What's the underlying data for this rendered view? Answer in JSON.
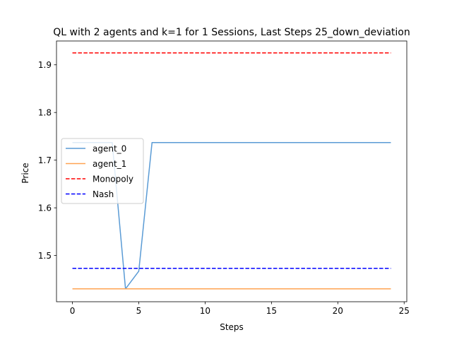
{
  "chart_data": {
    "type": "line",
    "title": "QL with 2 agents and k=1 for 1 Sessions, Last Steps 25_down_deviation",
    "xlabel": "Steps",
    "ylabel": "Price",
    "xlim": [
      -1.2,
      25.2
    ],
    "ylim": [
      1.403,
      1.95
    ],
    "xticks": [
      0,
      5,
      10,
      15,
      20,
      25
    ],
    "xtick_labels": [
      "0",
      "5",
      "10",
      "15",
      "20",
      "25"
    ],
    "yticks": [
      1.5,
      1.6,
      1.7,
      1.8,
      1.9
    ],
    "ytick_labels": [
      "1.5",
      "1.6",
      "1.7",
      "1.8",
      "1.9"
    ],
    "grid": false,
    "legend_position": "center-left",
    "series": [
      {
        "name": "agent_0",
        "color": "#5a9bd5",
        "style": "solid",
        "x": [
          0,
          1,
          2,
          3,
          4,
          5,
          6,
          7,
          8,
          9,
          10,
          11,
          12,
          13,
          14,
          15,
          16,
          17,
          18,
          19,
          20,
          21,
          22,
          23,
          24
        ],
        "values": [
          1.737,
          1.737,
          1.737,
          1.737,
          1.43,
          1.467,
          1.737,
          1.737,
          1.737,
          1.737,
          1.737,
          1.737,
          1.737,
          1.737,
          1.737,
          1.737,
          1.737,
          1.737,
          1.737,
          1.737,
          1.737,
          1.737,
          1.737,
          1.737,
          1.737
        ]
      },
      {
        "name": "agent_1",
        "color": "#ffa352",
        "style": "solid",
        "x": [
          0,
          1,
          2,
          3,
          4,
          5,
          6,
          7,
          8,
          9,
          10,
          11,
          12,
          13,
          14,
          15,
          16,
          17,
          18,
          19,
          20,
          21,
          22,
          23,
          24
        ],
        "values": [
          1.43,
          1.43,
          1.43,
          1.43,
          1.43,
          1.43,
          1.43,
          1.43,
          1.43,
          1.43,
          1.43,
          1.43,
          1.43,
          1.43,
          1.43,
          1.43,
          1.43,
          1.43,
          1.43,
          1.43,
          1.43,
          1.43,
          1.43,
          1.43,
          1.43
        ]
      },
      {
        "name": "Monopoly",
        "color": "#ff0000",
        "style": "dashed",
        "x": [
          0,
          24
        ],
        "values": [
          1.925,
          1.925
        ]
      },
      {
        "name": "Nash",
        "color": "#0000ff",
        "style": "dashed",
        "x": [
          0,
          24
        ],
        "values": [
          1.473,
          1.473
        ]
      }
    ]
  }
}
